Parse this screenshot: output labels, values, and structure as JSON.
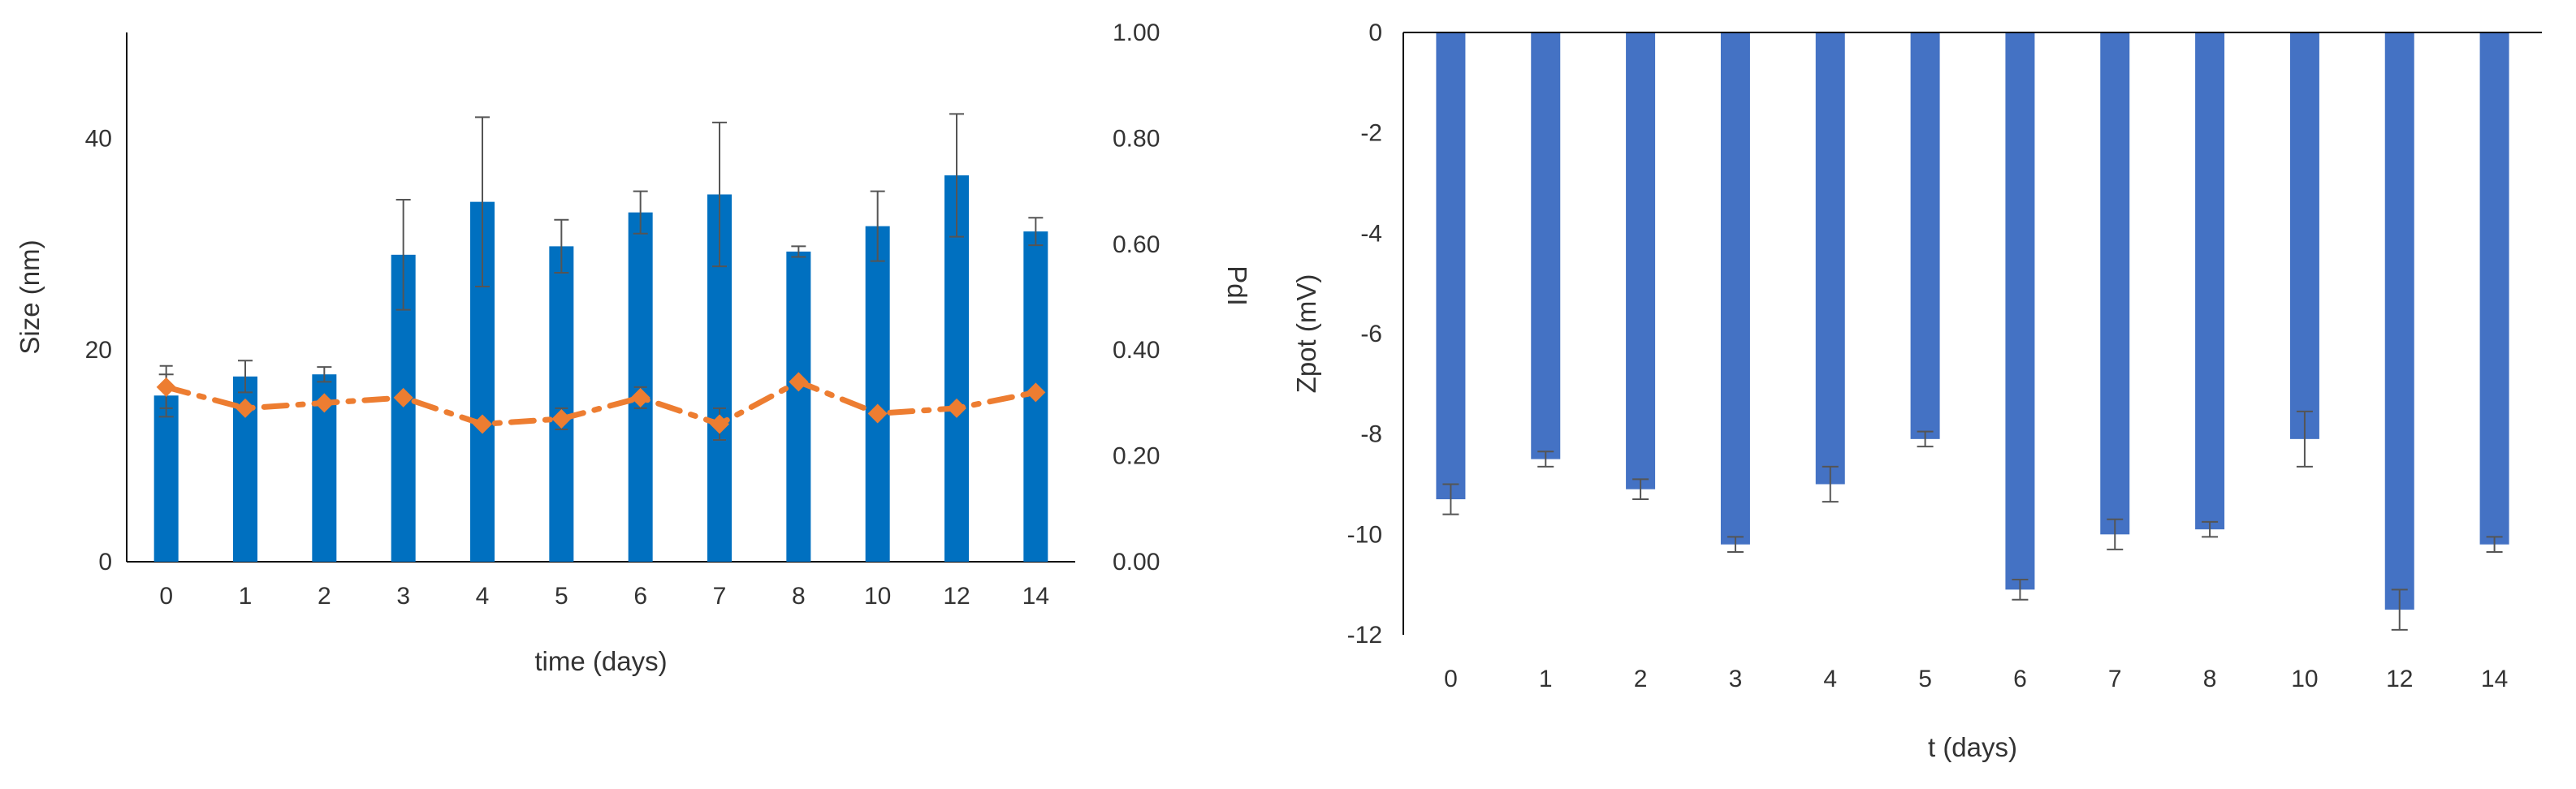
{
  "colors": {
    "size_bar": "#0070C0",
    "pdi_line": "#ED7D31",
    "zpot_bar": "#4472C4",
    "axis": "#000000",
    "error_bar": "#555555"
  },
  "chart_data": [
    {
      "type": "bar",
      "categories": [
        "0",
        "1",
        "2",
        "3",
        "4",
        "5",
        "6",
        "7",
        "8",
        "10",
        "12",
        "14"
      ],
      "xlabel": "time (days)",
      "ylabel": "Size (nm)",
      "ylabel2": "PdI",
      "ylim": [
        0,
        50
      ],
      "yticks": [
        0,
        20,
        40
      ],
      "y2lim": [
        0,
        1
      ],
      "y2ticks": [
        "0.00",
        "0.20",
        "0.40",
        "0.60",
        "0.80",
        "1.00"
      ],
      "grid": false,
      "series": [
        {
          "name": "Size",
          "type": "bar",
          "axis": "left",
          "values": [
            15.7,
            17.5,
            17.7,
            29.0,
            34.0,
            29.8,
            33.0,
            34.7,
            29.3,
            31.7,
            36.5,
            31.2
          ],
          "errors": [
            2.0,
            1.5,
            0.7,
            5.2,
            8.0,
            2.5,
            2.0,
            6.8,
            0.5,
            3.3,
            5.8,
            1.3
          ]
        },
        {
          "name": "PdI",
          "type": "line",
          "axis": "right",
          "style": "dash-dot",
          "values": [
            0.33,
            0.29,
            0.3,
            0.31,
            0.26,
            0.27,
            0.31,
            0.26,
            0.34,
            0.28,
            0.29,
            0.32
          ],
          "errors": [
            0.04,
            0.0,
            0.0,
            0.0,
            0.0,
            0.02,
            0.02,
            0.03,
            0.0,
            0.0,
            0.0,
            0.0
          ]
        }
      ]
    },
    {
      "type": "bar",
      "categories": [
        "0",
        "1",
        "2",
        "3",
        "4",
        "5",
        "6",
        "7",
        "8",
        "10",
        "12",
        "14"
      ],
      "xlabel": "t (days)",
      "ylabel": "Zpot (mV)",
      "ylim": [
        -12,
        0
      ],
      "yticks": [
        0,
        -2,
        -4,
        -6,
        -8,
        -10,
        -12
      ],
      "grid": false,
      "series": [
        {
          "name": "Zpot",
          "values": [
            -9.3,
            -8.5,
            -9.1,
            -10.2,
            -9.0,
            -8.1,
            -11.1,
            -10.0,
            -9.9,
            -8.1,
            -11.5,
            -10.2
          ],
          "errors": [
            0.3,
            0.15,
            0.2,
            0.15,
            0.35,
            0.15,
            0.2,
            0.3,
            0.15,
            0.55,
            0.4,
            0.15
          ]
        }
      ]
    }
  ]
}
